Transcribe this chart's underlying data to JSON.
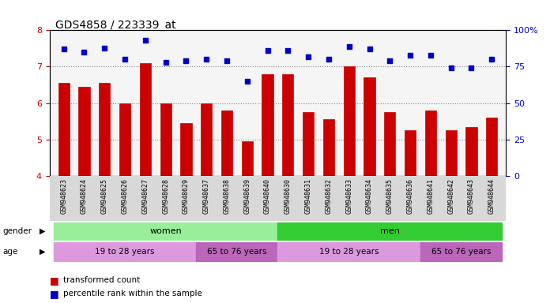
{
  "title": "GDS4858 / 223339_at",
  "samples": [
    "GSM948623",
    "GSM948624",
    "GSM948625",
    "GSM948626",
    "GSM948627",
    "GSM948628",
    "GSM948629",
    "GSM948637",
    "GSM948638",
    "GSM948639",
    "GSM948640",
    "GSM948630",
    "GSM948631",
    "GSM948632",
    "GSM948633",
    "GSM948634",
    "GSM948635",
    "GSM948636",
    "GSM948641",
    "GSM948642",
    "GSM948643",
    "GSM948644"
  ],
  "bar_values": [
    6.55,
    6.45,
    6.55,
    6.0,
    7.1,
    6.0,
    5.45,
    6.0,
    5.8,
    4.95,
    6.8,
    6.8,
    5.75,
    5.55,
    7.0,
    6.7,
    5.75,
    5.25,
    5.8,
    5.25,
    5.35,
    5.6
  ],
  "dot_values": [
    87,
    85,
    88,
    80,
    93,
    78,
    79,
    80,
    79,
    65,
    86,
    86,
    82,
    80,
    89,
    87,
    79,
    83,
    83,
    74,
    74,
    80
  ],
  "ylim_left": [
    4,
    8
  ],
  "ylim_right": [
    0,
    100
  ],
  "yticks_left": [
    4,
    5,
    6,
    7,
    8
  ],
  "yticks_right": [
    0,
    25,
    50,
    75,
    100
  ],
  "ytick_labels_right": [
    "0",
    "25",
    "50",
    "75",
    "100%"
  ],
  "bar_color": "#cc0000",
  "dot_color": "#0000cc",
  "bar_bottom": 4,
  "gender_groups": [
    {
      "label": "women",
      "start": 0,
      "end": 11,
      "color": "#99ee99"
    },
    {
      "label": "men",
      "start": 11,
      "end": 22,
      "color": "#33cc33"
    }
  ],
  "age_groups": [
    {
      "label": "19 to 28 years",
      "start": 0,
      "end": 7,
      "color": "#dd99dd"
    },
    {
      "label": "65 to 76 years",
      "start": 7,
      "end": 11,
      "color": "#bb66bb"
    },
    {
      "label": "19 to 28 years",
      "start": 11,
      "end": 18,
      "color": "#dd99dd"
    },
    {
      "label": "65 to 76 years",
      "start": 18,
      "end": 22,
      "color": "#bb66bb"
    }
  ],
  "legend_items": [
    {
      "label": "transformed count",
      "color": "#cc0000"
    },
    {
      "label": "percentile rank within the sample",
      "color": "#0000cc"
    }
  ],
  "grid_color": "#888888",
  "bg_color": "#ffffff",
  "axis_label_color_left": "#cc0000",
  "axis_label_color_right": "#0000cc"
}
